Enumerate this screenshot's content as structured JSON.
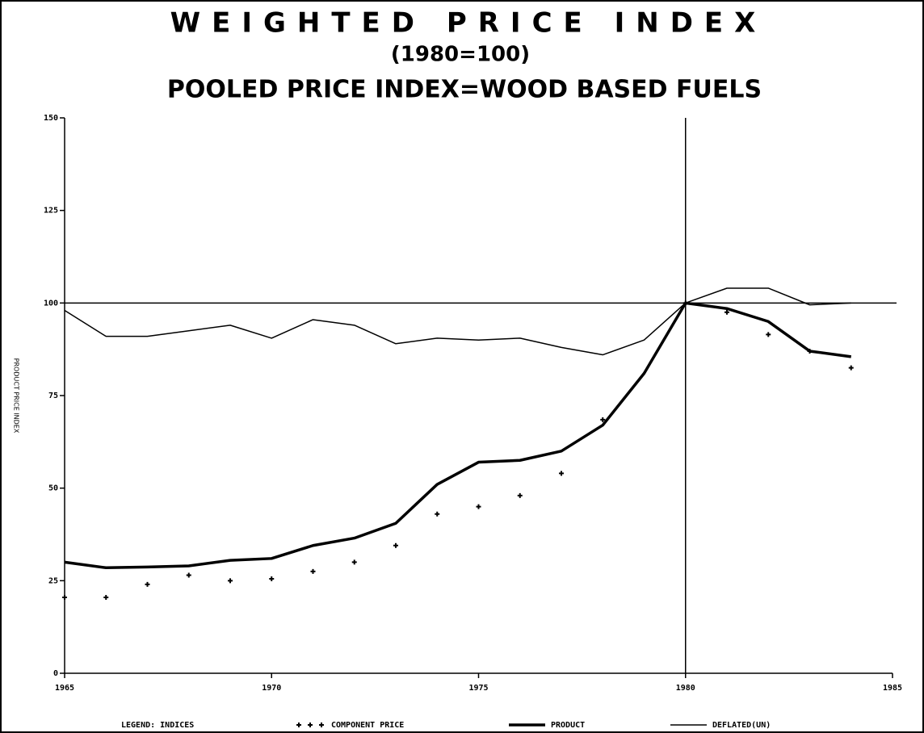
{
  "chart_data": {
    "type": "line",
    "title": "WEIGHTED PRICE INDEX",
    "subtitle": "(1980=100)",
    "subtitle2": "POOLED PRICE INDEX=WOOD BASED FUELS",
    "y_label": "PRODUCT PRICE INDEX",
    "legend_title": "LEGEND: INDICES",
    "x": [
      1965,
      1966,
      1967,
      1968,
      1969,
      1970,
      1971,
      1972,
      1973,
      1974,
      1975,
      1976,
      1977,
      1978,
      1979,
      1980,
      1981,
      1982,
      1983,
      1984
    ],
    "series": [
      {
        "name": "COMPONENT PRICE",
        "color": "#000000",
        "style": "markers",
        "values": [
          20.5,
          20.5,
          24,
          26.5,
          25,
          25.5,
          27.5,
          30,
          34.5,
          43,
          45,
          48,
          54,
          68.5,
          null,
          100,
          97.5,
          91.5,
          87,
          82.5
        ]
      },
      {
        "name": "PRODUCT",
        "color": "#000000",
        "style": "thick",
        "values": [
          30,
          28.5,
          28.7,
          29,
          30.5,
          31,
          34.5,
          36.5,
          40.5,
          51,
          57,
          57.5,
          60,
          67,
          81,
          100,
          98.5,
          95,
          87,
          85.5
        ]
      },
      {
        "name": "DEFLATED(UN)",
        "color": "#000000",
        "style": "thin",
        "values": [
          98,
          91,
          91,
          92.5,
          94,
          90.5,
          95.5,
          94,
          89,
          90.5,
          90,
          90.5,
          88,
          86,
          90,
          100,
          104,
          104,
          99.5,
          100
        ]
      }
    ],
    "xlim": [
      1965,
      1985
    ],
    "ylim": [
      0,
      150
    ],
    "xticks": [
      1965,
      1970,
      1975,
      1980,
      1985
    ],
    "yticks": [
      0,
      25,
      50,
      75,
      100,
      125,
      150
    ],
    "hline": 100,
    "vline": 1980
  }
}
